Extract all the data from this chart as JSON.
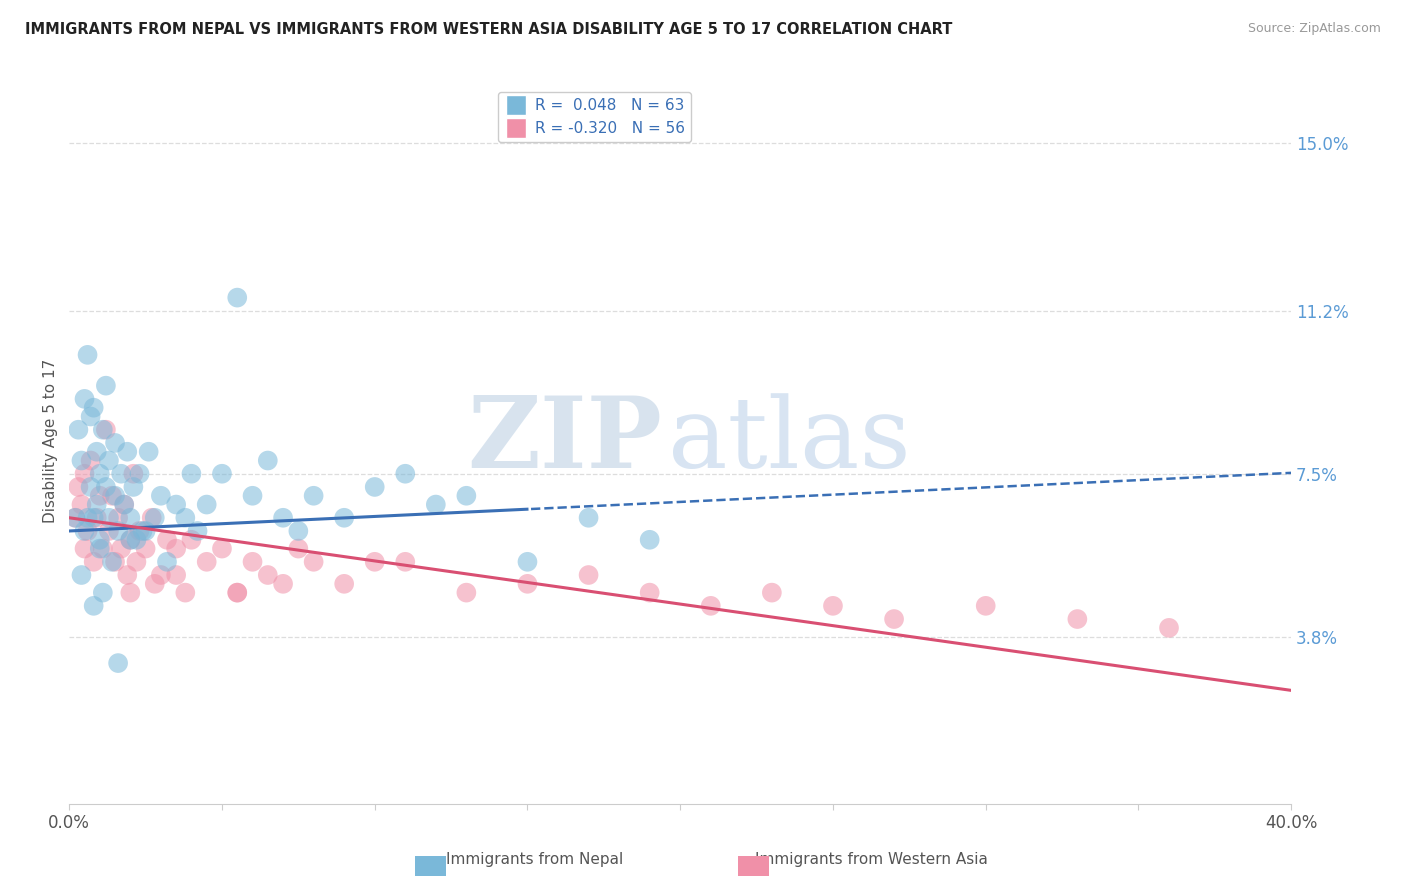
{
  "title": "IMMIGRANTS FROM NEPAL VS IMMIGRANTS FROM WESTERN ASIA DISABILITY AGE 5 TO 17 CORRELATION CHART",
  "source": "Source: ZipAtlas.com",
  "ylabel": "Disability Age 5 to 17",
  "x_ticks": [
    0.0,
    5.0,
    10.0,
    15.0,
    20.0,
    25.0,
    30.0,
    35.0,
    40.0
  ],
  "y_ticks_right": [
    3.8,
    7.5,
    11.2,
    15.0
  ],
  "xlim": [
    0.0,
    40.0
  ],
  "ylim": [
    0.0,
    16.5
  ],
  "nepal_R": "0.048",
  "nepal_N": "63",
  "western_R": "-0.320",
  "western_N": "56",
  "legend_label_1": "Immigrants from Nepal",
  "legend_label_2": "Immigrants from Western Asia",
  "watermark_ZIP": "ZIP",
  "watermark_atlas": "atlas",
  "nepal_color": "#7ab8d9",
  "western_color": "#f090a8",
  "nepal_line_color": "#3a6fb5",
  "western_line_color": "#d94f72",
  "background_color": "#ffffff",
  "title_color": "#222222",
  "axis_label_color": "#555555",
  "right_tick_color": "#5b9bd5",
  "legend_R_color": "#3a6fb5",
  "grid_color": "#dddddd",
  "nepal_line_intercept": 6.2,
  "nepal_line_slope": 0.033,
  "western_line_intercept": 6.5,
  "western_line_slope": -0.098,
  "nepal_scatter": {
    "x": [
      0.2,
      0.3,
      0.4,
      0.5,
      0.5,
      0.6,
      0.7,
      0.7,
      0.8,
      0.8,
      0.9,
      0.9,
      1.0,
      1.0,
      1.1,
      1.2,
      1.2,
      1.3,
      1.3,
      1.5,
      1.5,
      1.6,
      1.7,
      1.8,
      1.9,
      2.0,
      2.1,
      2.2,
      2.3,
      2.5,
      2.6,
      2.8,
      3.0,
      3.2,
      3.5,
      3.8,
      4.0,
      4.2,
      4.5,
      5.0,
      5.5,
      6.0,
      6.5,
      7.0,
      7.5,
      8.0,
      9.0,
      10.0,
      11.0,
      12.0,
      13.0,
      15.0,
      17.0,
      19.0,
      0.4,
      0.6,
      0.8,
      1.0,
      1.1,
      1.4,
      1.6,
      2.0,
      2.4
    ],
    "y": [
      6.5,
      8.5,
      7.8,
      9.2,
      6.2,
      10.2,
      8.8,
      7.2,
      9.0,
      6.5,
      8.0,
      6.8,
      7.5,
      5.8,
      8.5,
      7.2,
      9.5,
      6.5,
      7.8,
      7.0,
      8.2,
      6.2,
      7.5,
      6.8,
      8.0,
      6.5,
      7.2,
      6.0,
      7.5,
      6.2,
      8.0,
      6.5,
      7.0,
      5.5,
      6.8,
      6.5,
      7.5,
      6.2,
      6.8,
      7.5,
      11.5,
      7.0,
      7.8,
      6.5,
      6.2,
      7.0,
      6.5,
      7.2,
      7.5,
      6.8,
      7.0,
      5.5,
      6.5,
      6.0,
      5.2,
      6.5,
      4.5,
      6.0,
      4.8,
      5.5,
      3.2,
      6.0,
      6.2
    ]
  },
  "western_scatter": {
    "x": [
      0.2,
      0.3,
      0.4,
      0.5,
      0.5,
      0.6,
      0.7,
      0.8,
      0.9,
      1.0,
      1.1,
      1.2,
      1.3,
      1.4,
      1.5,
      1.6,
      1.7,
      1.8,
      1.9,
      2.0,
      2.1,
      2.2,
      2.3,
      2.5,
      2.7,
      3.0,
      3.2,
      3.5,
      3.8,
      4.0,
      4.5,
      5.0,
      5.5,
      6.0,
      6.5,
      7.0,
      7.5,
      8.0,
      9.0,
      10.0,
      11.0,
      13.0,
      15.0,
      17.0,
      19.0,
      21.0,
      23.0,
      25.0,
      27.0,
      30.0,
      33.0,
      36.0,
      2.0,
      2.8,
      3.5,
      5.5
    ],
    "y": [
      6.5,
      7.2,
      6.8,
      7.5,
      5.8,
      6.2,
      7.8,
      5.5,
      6.5,
      7.0,
      5.8,
      8.5,
      6.2,
      7.0,
      5.5,
      6.5,
      5.8,
      6.8,
      5.2,
      6.0,
      7.5,
      5.5,
      6.2,
      5.8,
      6.5,
      5.2,
      6.0,
      5.8,
      4.8,
      6.0,
      5.5,
      5.8,
      4.8,
      5.5,
      5.2,
      5.0,
      5.8,
      5.5,
      5.0,
      5.5,
      5.5,
      4.8,
      5.0,
      5.2,
      4.8,
      4.5,
      4.8,
      4.5,
      4.2,
      4.5,
      4.2,
      4.0,
      4.8,
      5.0,
      5.2,
      4.8
    ]
  }
}
